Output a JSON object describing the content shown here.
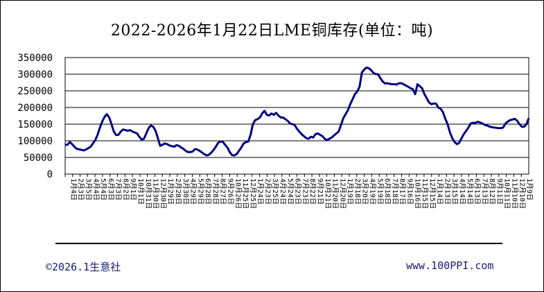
{
  "chart_data": {
    "type": "line",
    "title": "2022-2026年1月22日LME铜库存(单位：吨)",
    "xlabel": "",
    "ylabel": "",
    "ylim": [
      0,
      350000
    ],
    "yticks": [
      "350000",
      "300000",
      "250000",
      "200000",
      "150000",
      "100000",
      "50000",
      "0"
    ],
    "grid": true,
    "legend": "none",
    "line_color": "#000080",
    "xticks": [
      "1月4日",
      "2月3日",
      "3月5日",
      "4月4日",
      "5月4日",
      "6月3日",
      "7月3日",
      "8月2日",
      "9月1日",
      "10月1日",
      "10月31日",
      "11月30日",
      "12月30日",
      "1月29日",
      "2月28日",
      "3月30日",
      "4月29日",
      "5月29日",
      "6月28日",
      "7月28日",
      "8月27日",
      "9月26日",
      "10月26日",
      "11月25日",
      "12月25日",
      "1月24日",
      "2月23日",
      "3月25日",
      "4月24日",
      "5月24日",
      "6月23日",
      "7月23日",
      "8月22日",
      "9月21日",
      "10月21日",
      "11月20日",
      "12月20日",
      "1月19日",
      "2月18日",
      "3月20日",
      "4月19日",
      "5月19日",
      "6月18日",
      "7月18日",
      "8月17日",
      "9月16日",
      "10月16日",
      "11月15日",
      "12月15日",
      "1月14日",
      "2月13日",
      "3月15日",
      "4月14日",
      "5月14日",
      "6月13日",
      "7月13日",
      "8月12日",
      "9月11日",
      "10月11日",
      "11月10日",
      "12月10日",
      "1月9日"
    ],
    "series": [
      {
        "values": [
          [
            0,
            88000
          ],
          [
            1,
            88000
          ],
          [
            2,
            96000
          ],
          [
            3,
            90000
          ],
          [
            4,
            82000
          ],
          [
            5,
            76000
          ],
          [
            7,
            73000
          ],
          [
            8,
            71000
          ],
          [
            9,
            74000
          ],
          [
            10,
            78000
          ],
          [
            11,
            82000
          ],
          [
            12,
            92000
          ],
          [
            13,
            102000
          ],
          [
            14,
            118000
          ],
          [
            15,
            140000
          ],
          [
            16,
            158000
          ],
          [
            17,
            172000
          ],
          [
            18,
            180000
          ],
          [
            19,
            170000
          ],
          [
            20,
            150000
          ],
          [
            21,
            128000
          ],
          [
            22,
            117000
          ],
          [
            23,
            118000
          ],
          [
            24,
            128000
          ],
          [
            25,
            134000
          ],
          [
            26,
            132000
          ],
          [
            27,
            130000
          ],
          [
            28,
            132000
          ],
          [
            29,
            128000
          ],
          [
            30,
            125000
          ],
          [
            31,
            122000
          ],
          [
            32,
            112000
          ],
          [
            33,
            104000
          ],
          [
            34,
            106000
          ],
          [
            35,
            122000
          ],
          [
            36,
            138000
          ],
          [
            37,
            146000
          ],
          [
            38,
            142000
          ],
          [
            39,
            130000
          ],
          [
            40,
            108000
          ],
          [
            41,
            85000
          ],
          [
            42,
            88000
          ],
          [
            43,
            92000
          ],
          [
            44,
            90000
          ],
          [
            45,
            86000
          ],
          [
            46,
            84000
          ],
          [
            47,
            82000
          ],
          [
            48,
            87000
          ],
          [
            49,
            85000
          ],
          [
            50,
            80000
          ],
          [
            51,
            76000
          ],
          [
            52,
            70000
          ],
          [
            53,
            66000
          ],
          [
            54,
            66000
          ],
          [
            55,
            68000
          ],
          [
            56,
            75000
          ],
          [
            57,
            74000
          ],
          [
            58,
            70000
          ],
          [
            59,
            65000
          ],
          [
            60,
            60000
          ],
          [
            61,
            56000
          ],
          [
            62,
            58000
          ],
          [
            63,
            64000
          ],
          [
            64,
            72000
          ],
          [
            65,
            82000
          ],
          [
            66,
            94000
          ],
          [
            67,
            98000
          ],
          [
            68,
            97000
          ],
          [
            69,
            88000
          ],
          [
            70,
            80000
          ],
          [
            71,
            66000
          ],
          [
            72,
            57000
          ],
          [
            73,
            56000
          ],
          [
            74,
            60000
          ],
          [
            75,
            70000
          ],
          [
            76,
            80000
          ],
          [
            77,
            92000
          ],
          [
            78,
            96000
          ],
          [
            79,
            98000
          ],
          [
            80,
            118000
          ],
          [
            81,
            150000
          ],
          [
            82,
            162000
          ],
          [
            83,
            165000
          ],
          [
            84,
            170000
          ],
          [
            85,
            182000
          ],
          [
            86,
            190000
          ],
          [
            87,
            178000
          ],
          [
            88,
            176000
          ],
          [
            89,
            182000
          ],
          [
            90,
            178000
          ],
          [
            91,
            184000
          ],
          [
            92,
            176000
          ],
          [
            93,
            170000
          ],
          [
            94,
            170000
          ],
          [
            95,
            165000
          ],
          [
            96,
            160000
          ],
          [
            97,
            152000
          ],
          [
            98,
            150000
          ],
          [
            99,
            148000
          ],
          [
            100,
            136000
          ],
          [
            101,
            128000
          ],
          [
            102,
            120000
          ],
          [
            103,
            114000
          ],
          [
            104,
            108000
          ],
          [
            105,
            106000
          ],
          [
            106,
            112000
          ],
          [
            107,
            110000
          ],
          [
            108,
            120000
          ],
          [
            109,
            122000
          ],
          [
            110,
            118000
          ],
          [
            111,
            114000
          ],
          [
            112,
            106000
          ],
          [
            113,
            102000
          ],
          [
            114,
            106000
          ],
          [
            115,
            110000
          ],
          [
            116,
            116000
          ],
          [
            117,
            122000
          ],
          [
            118,
            128000
          ],
          [
            119,
            148000
          ],
          [
            120,
            168000
          ],
          [
            121,
            180000
          ],
          [
            122,
            192000
          ],
          [
            123,
            210000
          ],
          [
            124,
            225000
          ],
          [
            125,
            240000
          ],
          [
            126,
            248000
          ],
          [
            127,
            262000
          ],
          [
            128,
            305000
          ],
          [
            129,
            314000
          ],
          [
            130,
            320000
          ],
          [
            131,
            318000
          ],
          [
            132,
            312000
          ],
          [
            133,
            304000
          ],
          [
            134,
            300000
          ],
          [
            135,
            300000
          ],
          [
            136,
            288000
          ],
          [
            137,
            278000
          ],
          [
            138,
            272000
          ],
          [
            139,
            273000
          ],
          [
            140,
            271000
          ],
          [
            141,
            270000
          ],
          [
            142,
            270000
          ],
          [
            143,
            269000
          ],
          [
            144,
            273000
          ],
          [
            145,
            273000
          ],
          [
            146,
            270000
          ],
          [
            147,
            266000
          ],
          [
            148,
            262000
          ],
          [
            149,
            258000
          ],
          [
            150,
            255000
          ],
          [
            151,
            240000
          ],
          [
            152,
            270000
          ],
          [
            153,
            264000
          ],
          [
            154,
            258000
          ],
          [
            155,
            240000
          ],
          [
            156,
            228000
          ],
          [
            157,
            215000
          ],
          [
            158,
            210000
          ],
          [
            159,
            212000
          ],
          [
            160,
            212000
          ],
          [
            161,
            200000
          ],
          [
            162,
            196000
          ],
          [
            163,
            186000
          ],
          [
            164,
            166000
          ],
          [
            165,
            150000
          ],
          [
            166,
            125000
          ],
          [
            167,
            108000
          ],
          [
            168,
            96000
          ],
          [
            169,
            90000
          ],
          [
            170,
            94000
          ],
          [
            171,
            108000
          ],
          [
            172,
            120000
          ],
          [
            173,
            130000
          ],
          [
            174,
            140000
          ],
          [
            175,
            152000
          ],
          [
            176,
            154000
          ],
          [
            177,
            154000
          ],
          [
            178,
            157000
          ],
          [
            179,
            155000
          ],
          [
            180,
            152000
          ],
          [
            181,
            148000
          ],
          [
            182,
            146000
          ],
          [
            183,
            143000
          ],
          [
            184,
            141000
          ],
          [
            185,
            140000
          ],
          [
            186,
            139000
          ],
          [
            187,
            138000
          ],
          [
            188,
            138000
          ],
          [
            189,
            140000
          ],
          [
            190,
            152000
          ],
          [
            191,
            158000
          ],
          [
            192,
            162000
          ],
          [
            193,
            164000
          ],
          [
            194,
            166000
          ],
          [
            195,
            160000
          ],
          [
            196,
            150000
          ],
          [
            197,
            142000
          ],
          [
            198,
            142000
          ],
          [
            199,
            150000
          ],
          [
            200,
            168000
          ]
        ]
      }
    ]
  },
  "footer": {
    "copyright": "©2026.1生意社",
    "website": "www.100PPI.com"
  }
}
